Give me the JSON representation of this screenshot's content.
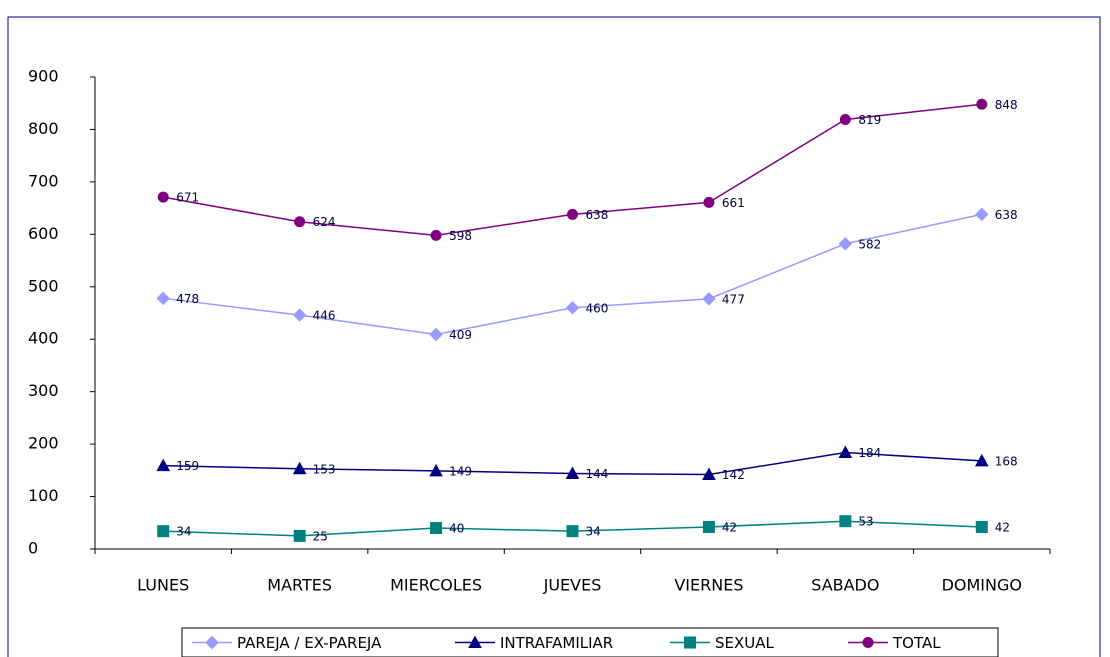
{
  "chart_data": {
    "type": "line",
    "categories": [
      "LUNES",
      "MARTES",
      "MIERCOLES",
      "JUEVES",
      "VIERNES",
      "SABADO",
      "DOMINGO"
    ],
    "series": [
      {
        "name": "PAREJA / EX-PAREJA",
        "color": "#9999ff",
        "marker": "diamond",
        "values": [
          478,
          446,
          409,
          460,
          477,
          582,
          638
        ]
      },
      {
        "name": "INTRAFAMILIAR",
        "color": "#000080",
        "marker": "triangle",
        "values": [
          159,
          153,
          149,
          144,
          142,
          184,
          168
        ]
      },
      {
        "name": "SEXUAL",
        "color": "#008080",
        "marker": "square",
        "values": [
          34,
          25,
          40,
          34,
          42,
          53,
          42
        ]
      },
      {
        "name": "TOTAL",
        "color": "#800080",
        "marker": "circle",
        "values": [
          671,
          624,
          598,
          638,
          661,
          819,
          848
        ]
      }
    ],
    "ylim": [
      0,
      900
    ],
    "yticks": [
      0,
      100,
      200,
      300,
      400,
      500,
      600,
      700,
      800,
      900
    ],
    "grid": false,
    "legend": "bottom"
  }
}
